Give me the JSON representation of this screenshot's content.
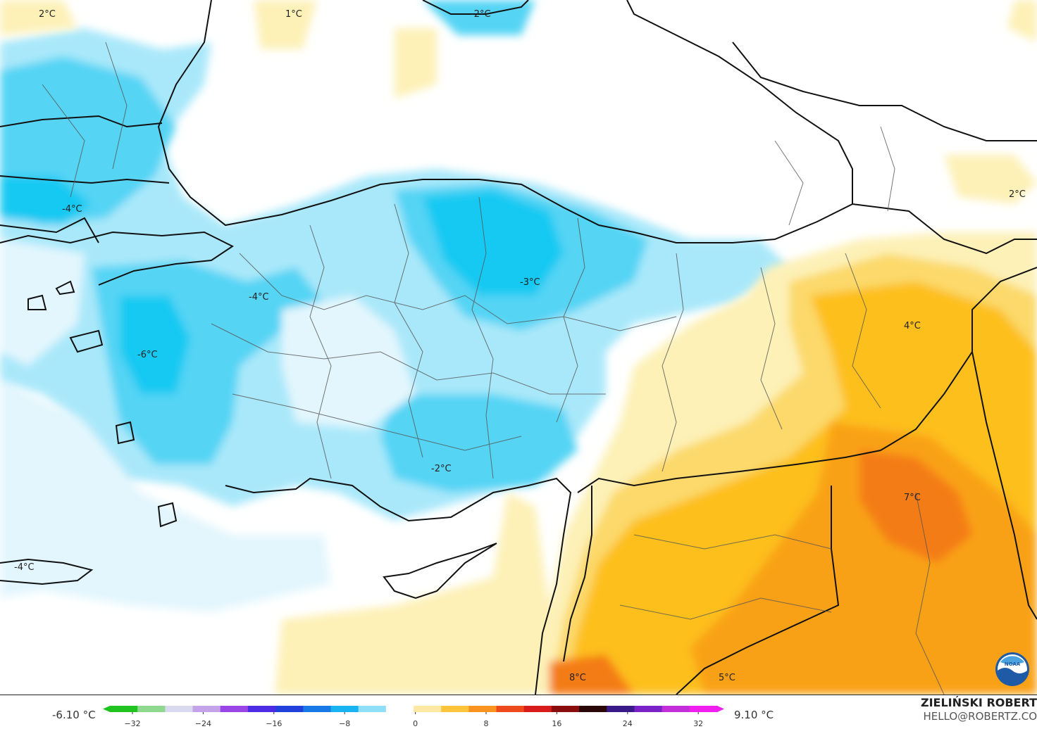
{
  "map": {
    "labels": [
      {
        "id": "t-nw-corner",
        "text": "2°C"
      },
      {
        "id": "t-crimea-west",
        "text": "1°C"
      },
      {
        "id": "t-crimea",
        "text": "-2°C"
      },
      {
        "id": "t-caucasus",
        "text": "2°C"
      },
      {
        "id": "t-bulgaria",
        "text": "-4°C"
      },
      {
        "id": "t-northern-anatolia",
        "text": "-3°C"
      },
      {
        "id": "t-western-anatolia",
        "text": "-4°C"
      },
      {
        "id": "t-aegean",
        "text": "-6°C"
      },
      {
        "id": "t-eastern-anatolia",
        "text": "4°C"
      },
      {
        "id": "t-southern-anatolia",
        "text": "-2°C"
      },
      {
        "id": "t-crete",
        "text": "-4°C"
      },
      {
        "id": "t-northern-iraq",
        "text": "7°C"
      },
      {
        "id": "t-levant",
        "text": "8°C"
      },
      {
        "id": "t-syria-desert",
        "text": "5°C"
      }
    ],
    "colors": {
      "sea": "#ffffff",
      "cold_deep": "#17c9f2",
      "cold": "#55d4f4",
      "cool": "#a9e8fa",
      "chill": "#e3f6fd",
      "mild": "#fdf1b8",
      "warm": "#fcd96a",
      "warmer": "#fdbf1f",
      "hot": "#f9a117",
      "hotter": "#f47c18",
      "border": "#111111"
    },
    "logo": "noaa-logo"
  },
  "footer": {
    "min_value": "-6.10 °C",
    "max_value": "9.10 °C",
    "credit_name": "ZIELIŃSKI ROBERT",
    "credit_email": "HELLO@ROBERTZ.CO",
    "colorbar_ticks": [
      "−32",
      "−24",
      "−16",
      "−8",
      "0",
      "8",
      "16",
      "24",
      "32"
    ],
    "colorbar_colors": [
      "#1fc41f",
      "#8fd98f",
      "#d9d9f0",
      "#c5a3e8",
      "#9a46e6",
      "#4b2be3",
      "#2140dc",
      "#1778e6",
      "#18b4f1",
      "#8fdff8",
      "#ffffff",
      "#fde9a3",
      "#fcc43a",
      "#f7931e",
      "#ee4a1b",
      "#d81b1b",
      "#8a0e0e",
      "#2a0606",
      "#3a1a8a",
      "#7a22c8",
      "#c22fd8",
      "#f01ff0"
    ]
  }
}
